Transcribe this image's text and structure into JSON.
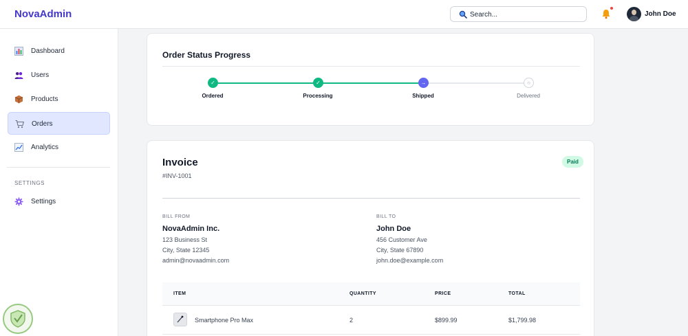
{
  "app": {
    "brand": "NovaAdmin"
  },
  "header": {
    "search_placeholder": "Search...",
    "user_name": "John Doe"
  },
  "sidebar": {
    "items": [
      {
        "label": "Dashboard",
        "icon": "chart-icon",
        "active": false
      },
      {
        "label": "Users",
        "icon": "users-icon",
        "active": false
      },
      {
        "label": "Products",
        "icon": "box-icon",
        "active": false
      },
      {
        "label": "Orders",
        "icon": "cart-icon",
        "active": true
      },
      {
        "label": "Analytics",
        "icon": "trend-icon",
        "active": false
      }
    ],
    "section_title": "SETTINGS",
    "settings_item": {
      "label": "Settings",
      "icon": "gear-icon"
    }
  },
  "order_progress": {
    "title": "Order Status Progress",
    "steps": [
      {
        "label": "Ordered",
        "state": "done"
      },
      {
        "label": "Processing",
        "state": "done"
      },
      {
        "label": "Shipped",
        "state": "current"
      },
      {
        "label": "Delivered",
        "state": "pending"
      }
    ]
  },
  "invoice": {
    "title": "Invoice",
    "number": "#INV-1001",
    "status": "Paid",
    "bill_from": {
      "caption": "BILL FROM",
      "name": "NovaAdmin Inc.",
      "address": "123 Business St",
      "city": "City, State 12345",
      "email": "admin@novaadmin.com"
    },
    "bill_to": {
      "caption": "BILL TO",
      "name": "John Doe",
      "address": "456 Customer Ave",
      "city": "City, State 67890",
      "email": "john.doe@example.com"
    },
    "columns": [
      "ITEM",
      "QUANTITY",
      "PRICE",
      "TOTAL"
    ],
    "rows": [
      {
        "item": "Smartphone Pro Max",
        "quantity": "2",
        "price": "$899.99",
        "total": "$1,799.98"
      }
    ]
  },
  "colors": {
    "brand": "#4338ca",
    "step_done": "#10b981",
    "step_current": "#6366f1",
    "active_nav": "#e0e7ff",
    "paid_badge": "#d1fae5"
  }
}
